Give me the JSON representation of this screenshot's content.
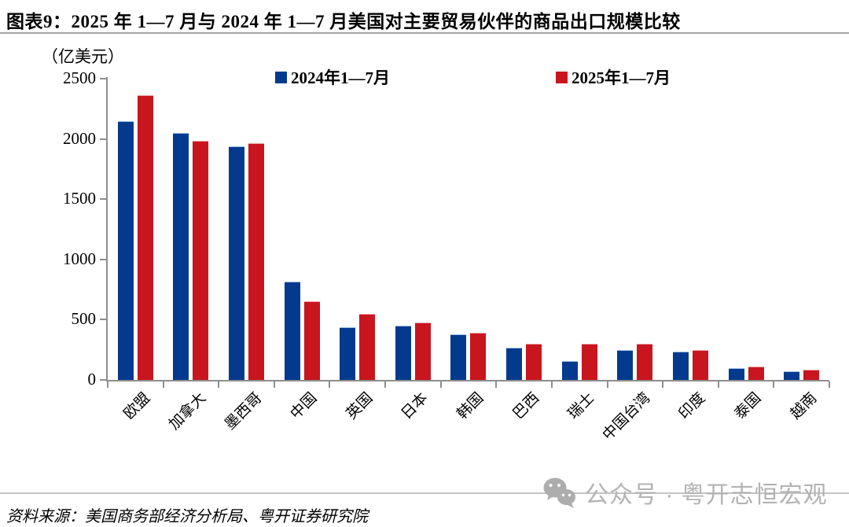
{
  "title": "图表9：2025 年 1—7 月与 2024 年 1—7 月美国对主要贸易伙伴的商品出口规模比较",
  "unit_label": "（亿美元）",
  "colors": {
    "series_2024": "#043a8e",
    "series_2024_border": "#9dc3e6",
    "series_2025": "#c9151e",
    "series_2025_border": "#eea7ab",
    "axis": "#8e8e8e",
    "watermark": "#b3b3b3"
  },
  "chart_data": {
    "type": "bar",
    "title": "2025年1—7月与2024年1—7月美国对主要贸易伙伴的商品出口规模比较",
    "categories": [
      "欧盟",
      "加拿大",
      "墨西哥",
      "中国",
      "英国",
      "日本",
      "韩国",
      "巴西",
      "瑞士",
      "中国台湾",
      "印度",
      "泰国",
      "越南"
    ],
    "series": [
      {
        "name": "2024年1—7月",
        "color": "#043a8e",
        "border": "#9dc3e6",
        "values": [
          2150,
          2050,
          1940,
          815,
          440,
          450,
          380,
          270,
          155,
          245,
          235,
          100,
          70
        ]
      },
      {
        "name": "2025年1—7月",
        "color": "#c9151e",
        "border": "#eea7ab",
        "values": [
          2365,
          1985,
          1965,
          655,
          550,
          475,
          390,
          300,
          300,
          300,
          250,
          110,
          82
        ]
      }
    ],
    "xlabel": "",
    "ylabel": "（亿美元）",
    "ylim": [
      0,
      2500
    ],
    "yticks": [
      0,
      500,
      1000,
      1500,
      2000,
      2500
    ],
    "grid": false,
    "legend_position": "top"
  },
  "watermark": {
    "icon": "wechat-icon",
    "text": "公众号 · 粤开志恒宏观"
  },
  "footer": {
    "source": "资料来源：美国商务部经济分析局、粤开证券研究院"
  }
}
